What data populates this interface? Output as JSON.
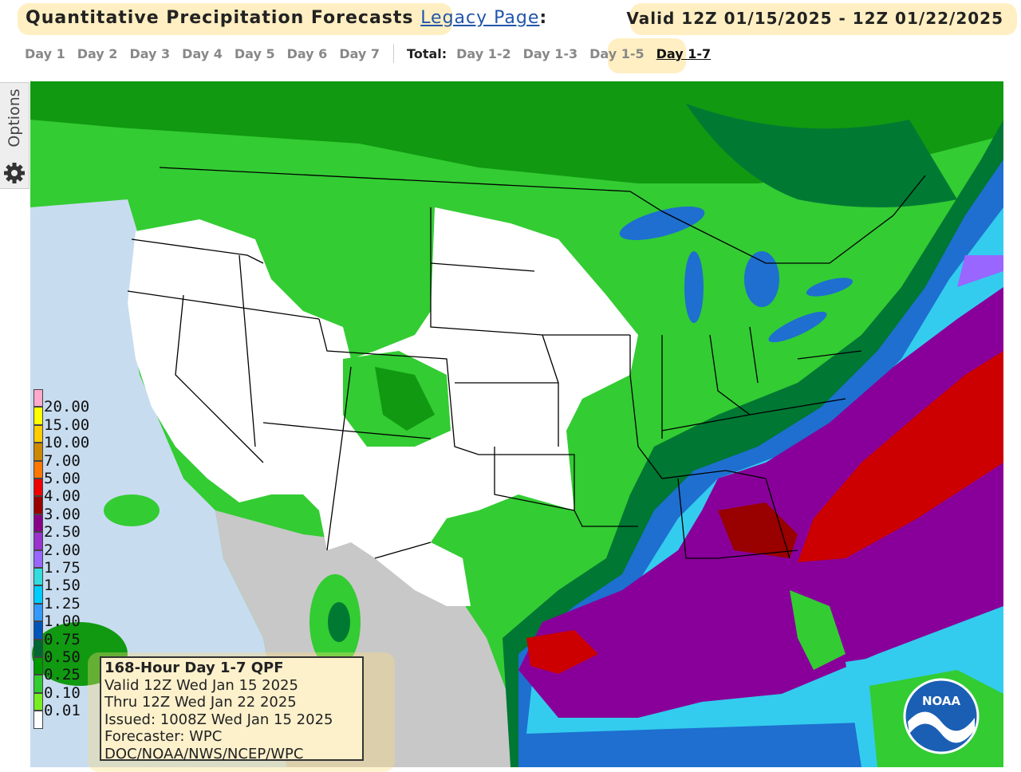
{
  "header": {
    "title": "Quantitative Precipitation Forecasts",
    "legacy_link": "Legacy Page",
    "colon": ":",
    "valid": "Valid 12Z 01/15/2025 - 12Z 01/22/2025"
  },
  "tabs": {
    "days": [
      "Day 1",
      "Day 2",
      "Day 3",
      "Day 4",
      "Day 5",
      "Day 6",
      "Day 7"
    ],
    "total_label": "Total:",
    "totals": [
      "Day 1-2",
      "Day 1-3",
      "Day 1-5",
      "Day 1-7"
    ]
  },
  "side_tab": "Options",
  "legend": {
    "items": [
      {
        "label": "20.00",
        "color": "#ffaacc"
      },
      {
        "label": "15.00",
        "color": "#ffff00"
      },
      {
        "label": "10.00",
        "color": "#ffcc00"
      },
      {
        "label": "7.00",
        "color": "#cc8800"
      },
      {
        "label": "5.00",
        "color": "#ff7700"
      },
      {
        "label": "4.00",
        "color": "#ee0000"
      },
      {
        "label": "3.00",
        "color": "#990000"
      },
      {
        "label": "2.50",
        "color": "#880088"
      },
      {
        "label": "2.00",
        "color": "#9933cc"
      },
      {
        "label": "1.75",
        "color": "#9966ff"
      },
      {
        "label": "1.50",
        "color": "#33dddd"
      },
      {
        "label": "1.25",
        "color": "#00ccff"
      },
      {
        "label": "1.00",
        "color": "#3399ff"
      },
      {
        "label": "0.75",
        "color": "#0055bb"
      },
      {
        "label": "0.50",
        "color": "#006633"
      },
      {
        "label": "0.25",
        "color": "#009900"
      },
      {
        "label": "0.10",
        "color": "#33cc33"
      },
      {
        "label": "0.01",
        "color": "#77ee22"
      }
    ]
  },
  "info_box": {
    "lines": [
      "168-Hour Day 1-7 QPF",
      "Valid 12Z Wed Jan 15 2025",
      "Thru 12Z Wed Jan 22 2025",
      "Issued: 1008Z Wed Jan 15 2025",
      "Forecaster: WPC",
      "DOC/NOAA/NWS/NCEP/WPC"
    ]
  },
  "logo": "NOAA"
}
